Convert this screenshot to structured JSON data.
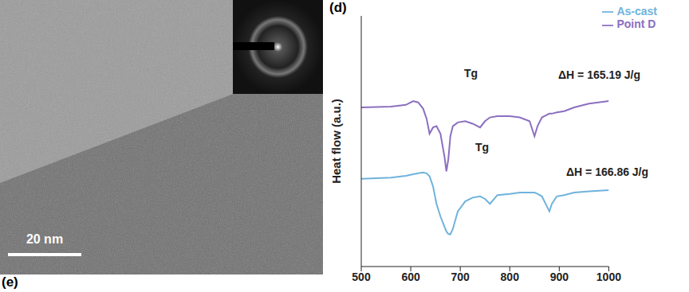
{
  "chart_data": {
    "type": "line",
    "y_label": "Heat flow (a.u.)",
    "x": [
      500,
      560,
      590,
      605,
      615,
      625,
      632,
      638,
      645,
      652,
      660,
      668,
      672,
      676,
      680,
      685,
      695,
      710,
      725,
      740,
      750,
      760,
      775,
      800,
      820,
      840,
      850,
      856,
      865,
      875,
      880,
      885,
      895,
      910,
      930,
      960,
      1000
    ],
    "series": [
      {
        "name": "As-cast",
        "color": "#6fb3dc",
        "values": [
          3.5,
          3.55,
          3.62,
          3.68,
          3.72,
          3.75,
          3.72,
          3.6,
          3.2,
          2.5,
          2.0,
          1.6,
          1.4,
          1.3,
          1.28,
          1.5,
          2.2,
          2.6,
          2.75,
          2.8,
          2.7,
          2.5,
          2.85,
          2.9,
          2.95,
          2.95,
          2.95,
          2.9,
          2.8,
          2.4,
          2.2,
          2.5,
          2.8,
          2.85,
          2.95,
          3.0,
          3.05
        ]
      },
      {
        "name": "Point D",
        "color": "#8c6fc0",
        "values": [
          6.35,
          6.38,
          6.45,
          6.6,
          6.55,
          6.3,
          5.9,
          5.3,
          5.55,
          5.6,
          5.3,
          4.4,
          3.8,
          4.3,
          5.2,
          5.6,
          5.75,
          5.8,
          5.7,
          5.55,
          5.8,
          5.95,
          6.0,
          6.0,
          5.95,
          5.8,
          5.2,
          5.6,
          5.95,
          6.05,
          6.1,
          6.1,
          6.15,
          6.2,
          6.35,
          6.5,
          6.6
        ]
      }
    ],
    "xlim": [
      500,
      1000
    ],
    "xticks": [
      500,
      600,
      700,
      800,
      900,
      1000
    ],
    "ylim": [
      0,
      10
    ],
    "tick_labels": "x",
    "legend": "upper right",
    "annotations": [
      {
        "text": "Tg",
        "series": "Point D"
      },
      {
        "text": "ΔH = 165.19 J/g",
        "series": "Point D"
      },
      {
        "text": "Tg",
        "series": "As-cast"
      },
      {
        "text": "ΔH = 166.86 J/g",
        "series": "As-cast"
      }
    ]
  },
  "image_panel": {
    "scale_bar": "20 nm"
  },
  "panel_labels": [
    "(d)",
    "(e)"
  ]
}
